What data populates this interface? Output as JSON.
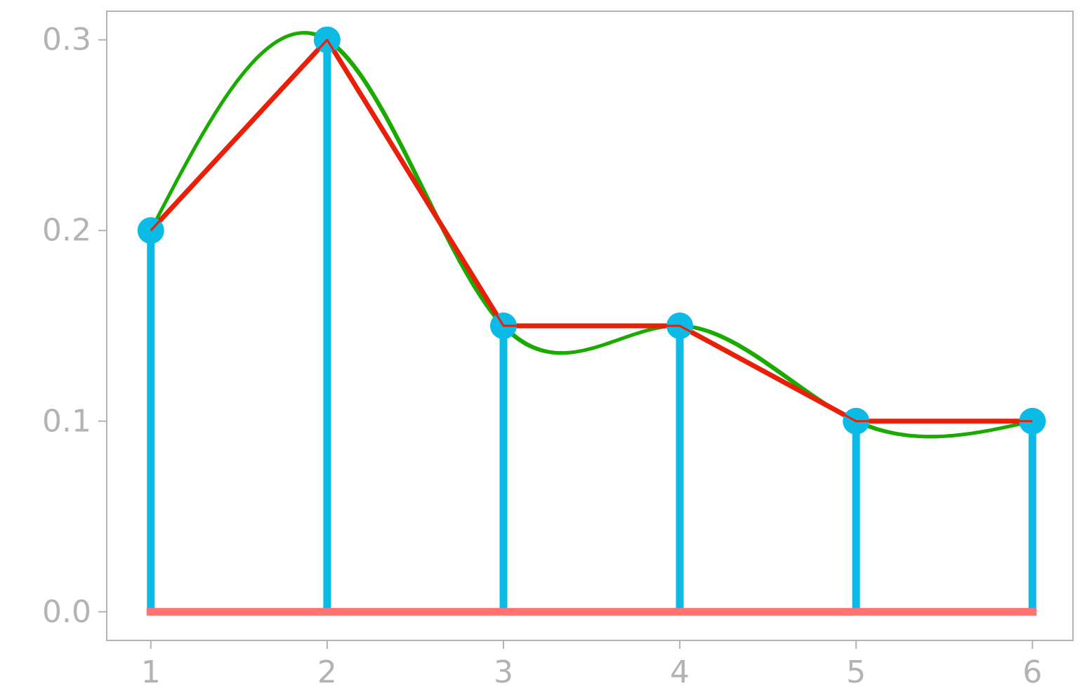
{
  "chart_data": {
    "type": "stem",
    "title": "",
    "xlabel": "",
    "ylabel": "",
    "x": [
      1,
      2,
      3,
      4,
      5,
      6
    ],
    "y": [
      0.2,
      0.3,
      0.15,
      0.15,
      0.1,
      0.1
    ],
    "xlim": [
      0.75,
      6.23
    ],
    "ylim": [
      -0.015,
      0.315
    ],
    "xticks": [
      1,
      2,
      3,
      4,
      5,
      6
    ],
    "xtick_labels": [
      "1",
      "2",
      "3",
      "4",
      "5",
      "6"
    ],
    "yticks": [
      0.0,
      0.1,
      0.2,
      0.3
    ],
    "ytick_labels": [
      "0.0",
      "0.1",
      "0.2",
      "0.3"
    ],
    "grid": false,
    "legend": "none",
    "overlays": [
      {
        "style": "linear interpolation (sketch)",
        "color": "#e8200a"
      },
      {
        "style": "smooth spline (sketch)",
        "color": "#1aaa00"
      }
    ],
    "colors": {
      "stem": "#0bbbe6",
      "baseline": "#ff7373",
      "linear": "#e8200a",
      "spline": "#1aaa00",
      "axis": "#b3b3b3"
    }
  }
}
